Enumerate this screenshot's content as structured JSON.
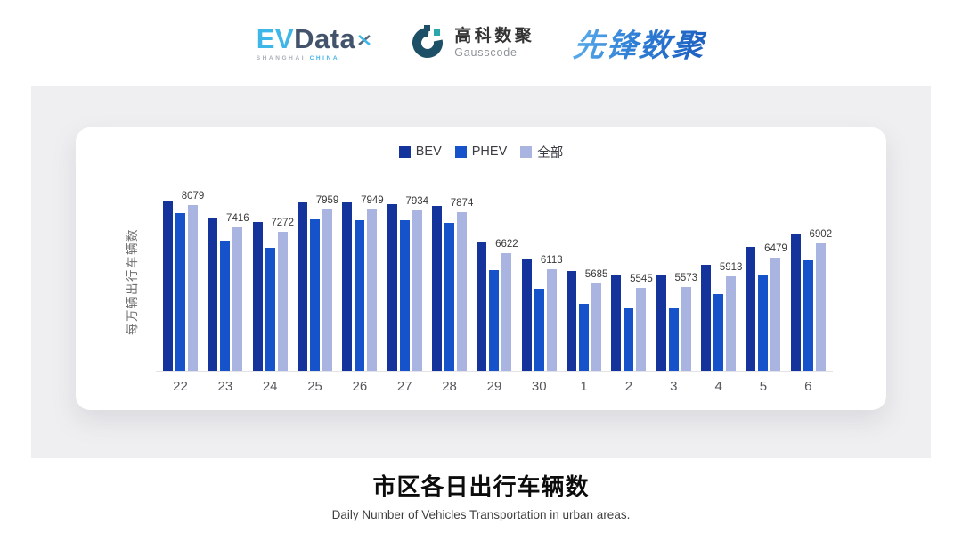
{
  "header": {
    "evdata": {
      "ev": "EV",
      "data": "Data",
      "sub_left": "SHANGHAI ",
      "sub_right": "CHINA"
    },
    "gausscode": {
      "cn": "高科数聚",
      "en": "Gausscode"
    },
    "xianfeng": {
      "text": "先锋数聚"
    }
  },
  "chart_data": {
    "type": "bar",
    "title": "市区各日出行车辆数",
    "categories": [
      "22",
      "23",
      "24",
      "25",
      "26",
      "27",
      "28",
      "29",
      "30",
      "1",
      "2",
      "3",
      "4",
      "5",
      "6"
    ],
    "series": [
      {
        "name": "BEV",
        "key": "bev",
        "color": "#14339b",
        "labeled": false,
        "estimated": true,
        "values": [
          8220,
          7680,
          7575,
          8160,
          8160,
          8130,
          8050,
          6945,
          6445,
          6075,
          5925,
          5950,
          6255,
          6795,
          7220
        ]
      },
      {
        "name": "PHEV",
        "key": "phev",
        "color": "#1652c9",
        "labeled": false,
        "estimated": true,
        "values": [
          7850,
          6990,
          6780,
          7655,
          7635,
          7620,
          7545,
          6105,
          5520,
          5065,
          4930,
          4930,
          5355,
          5930,
          6385
        ]
      },
      {
        "name": "全部",
        "key": "all",
        "color": "#aab4e0",
        "labeled": true,
        "estimated": false,
        "values": [
          8079,
          7416,
          7272,
          7959,
          7949,
          7934,
          7874,
          6622,
          6113,
          5685,
          5545,
          5573,
          5913,
          6479,
          6902
        ]
      }
    ],
    "xlabel": "",
    "ylabel": "每万辆出行车辆数",
    "axis_min": 3000,
    "axis_max": 8500,
    "grid": false,
    "legend_position": "top"
  },
  "footer": {
    "title": "市区各日出行车辆数",
    "subtitle": "Daily Number of Vehicles Transportation in urban areas."
  },
  "colors": {
    "panel_bg": "#efeff1",
    "card_bg": "#ffffff",
    "axis_line": "#e3e3e7",
    "evdata_cyan": "#3fb6e8",
    "evdata_slate": "#43536b",
    "gausscode_dark": "#1d5066",
    "gausscode_teal": "#2aa7ad",
    "xianfeng_blue": "#2c7cd6"
  }
}
